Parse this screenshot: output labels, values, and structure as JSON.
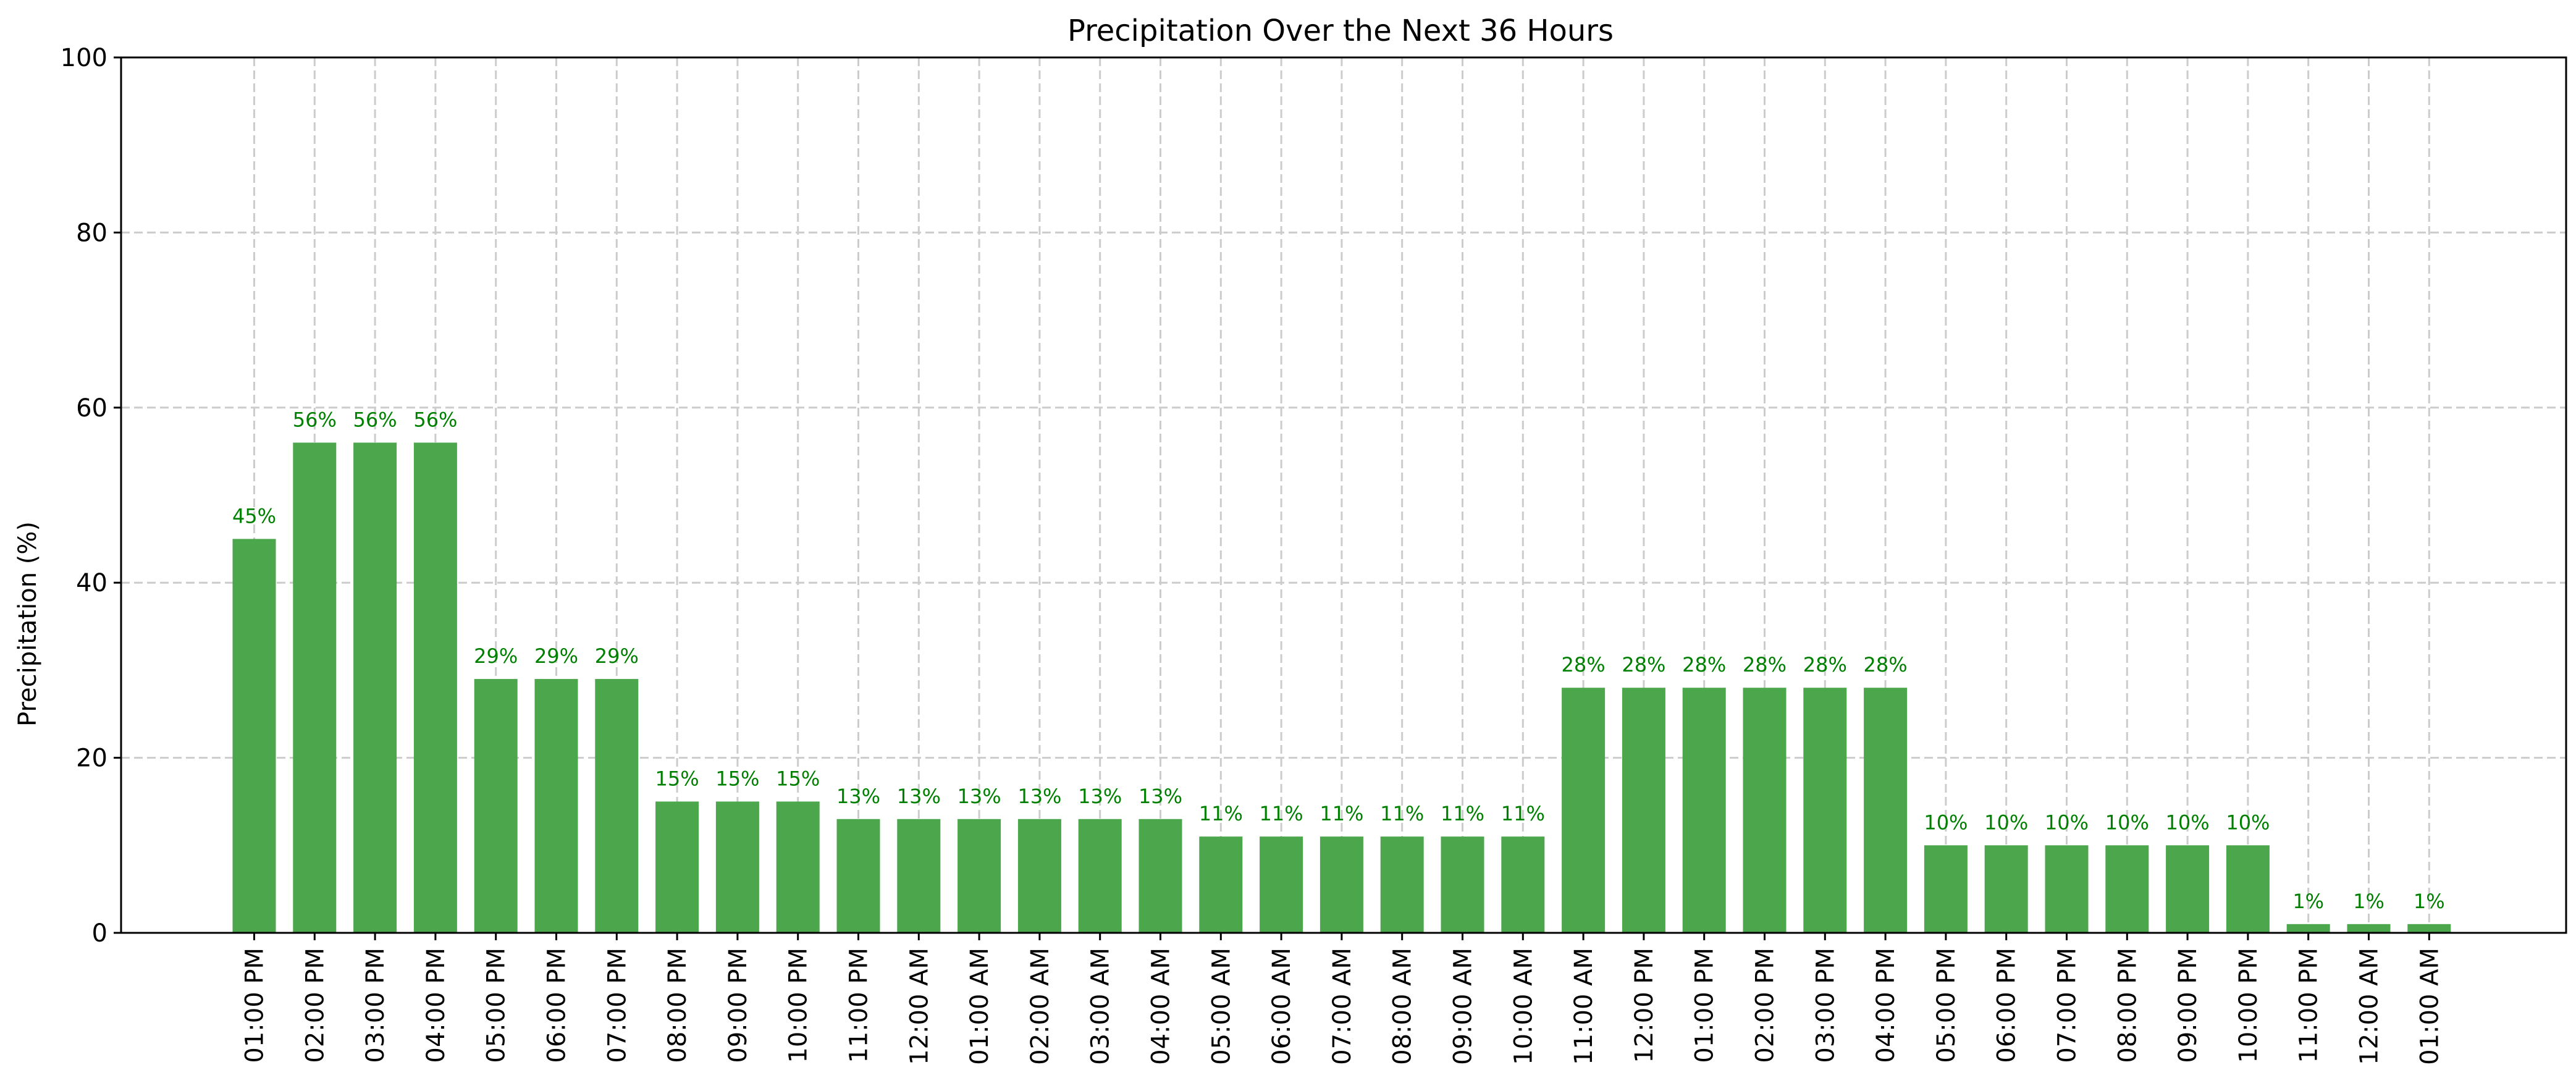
{
  "chart_data": {
    "type": "bar",
    "title": "Precipitation Over the Next 36 Hours",
    "xlabel": "",
    "ylabel": "Precipitation (%)",
    "ylim": [
      0,
      100
    ],
    "yticks": [
      0,
      20,
      40,
      60,
      80,
      100
    ],
    "grid": true,
    "bar_color": "#4ca64c",
    "label_color": "#008000",
    "categories": [
      "01:00 PM",
      "02:00 PM",
      "03:00 PM",
      "04:00 PM",
      "05:00 PM",
      "06:00 PM",
      "07:00 PM",
      "08:00 PM",
      "09:00 PM",
      "10:00 PM",
      "11:00 PM",
      "12:00 AM",
      "01:00 AM",
      "02:00 AM",
      "03:00 AM",
      "04:00 AM",
      "05:00 AM",
      "06:00 AM",
      "07:00 AM",
      "08:00 AM",
      "09:00 AM",
      "10:00 AM",
      "11:00 AM",
      "12:00 PM",
      "01:00 PM",
      "02:00 PM",
      "03:00 PM",
      "04:00 PM",
      "05:00 PM",
      "06:00 PM",
      "07:00 PM",
      "08:00 PM",
      "09:00 PM",
      "10:00 PM",
      "11:00 PM",
      "12:00 AM",
      "01:00 AM"
    ],
    "values": [
      45,
      56,
      56,
      56,
      29,
      29,
      29,
      15,
      15,
      15,
      13,
      13,
      13,
      13,
      13,
      13,
      11,
      11,
      11,
      11,
      11,
      11,
      28,
      28,
      28,
      28,
      28,
      28,
      10,
      10,
      10,
      10,
      10,
      10,
      1,
      1,
      1
    ],
    "data_labels": [
      "45%",
      "56%",
      "56%",
      "56%",
      "29%",
      "29%",
      "29%",
      "15%",
      "15%",
      "15%",
      "13%",
      "13%",
      "13%",
      "13%",
      "13%",
      "13%",
      "11%",
      "11%",
      "11%",
      "11%",
      "11%",
      "11%",
      "28%",
      "28%",
      "28%",
      "28%",
      "28%",
      "28%",
      "10%",
      "10%",
      "10%",
      "10%",
      "10%",
      "10%",
      "1%",
      "1%",
      "1%"
    ]
  }
}
